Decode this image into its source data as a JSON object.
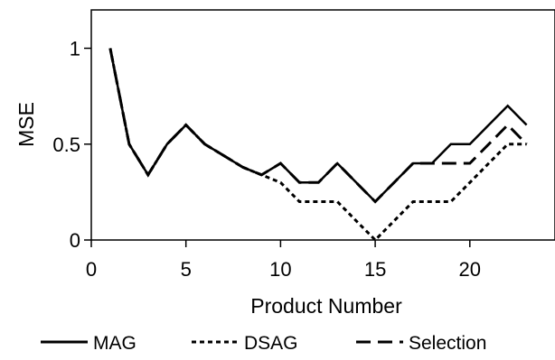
{
  "chart_data": {
    "type": "line",
    "title": "",
    "xlabel": "Product Number",
    "ylabel": "MSE",
    "xlim": [
      0,
      24.5
    ],
    "ylim": [
      0,
      1.2
    ],
    "x_ticks": [
      0,
      5,
      10,
      15,
      20
    ],
    "x_tick_labels": [
      "0",
      "5",
      "10",
      "15",
      "20"
    ],
    "y_ticks": [
      0,
      0.5,
      1
    ],
    "y_tick_labels": [
      "0",
      "0.5",
      "1"
    ],
    "grid": false,
    "legend_position": "bottom",
    "x": [
      1,
      2,
      3,
      4,
      5,
      6,
      7,
      8,
      9,
      10,
      11,
      12,
      13,
      14,
      15,
      16,
      17,
      18,
      19,
      20,
      21,
      22,
      23
    ],
    "series": [
      {
        "name": "MAG",
        "line_style": "solid",
        "color": "#000000",
        "values": [
          1.0,
          0.5,
          0.34,
          0.5,
          0.6,
          0.5,
          0.44,
          0.38,
          0.34,
          0.4,
          0.3,
          0.3,
          0.4,
          0.3,
          0.2,
          0.3,
          0.4,
          0.4,
          0.5,
          0.5,
          0.6,
          0.7,
          0.6
        ]
      },
      {
        "name": "DSAG",
        "line_style": "dotted",
        "color": "#000000",
        "values": [
          1.0,
          0.5,
          0.34,
          0.5,
          0.6,
          0.5,
          0.44,
          0.38,
          0.34,
          0.3,
          0.2,
          0.2,
          0.2,
          0.1,
          0.0,
          0.1,
          0.2,
          0.2,
          0.2,
          0.3,
          0.4,
          0.5,
          0.5
        ]
      },
      {
        "name": "Selection",
        "line_style": "dashed",
        "color": "#000000",
        "values": [
          1.0,
          0.5,
          0.34,
          0.5,
          0.6,
          0.5,
          0.44,
          0.38,
          0.34,
          0.4,
          0.3,
          0.3,
          0.4,
          0.3,
          0.2,
          0.3,
          0.4,
          0.4,
          0.4,
          0.4,
          0.5,
          0.6,
          0.5
        ]
      }
    ]
  }
}
